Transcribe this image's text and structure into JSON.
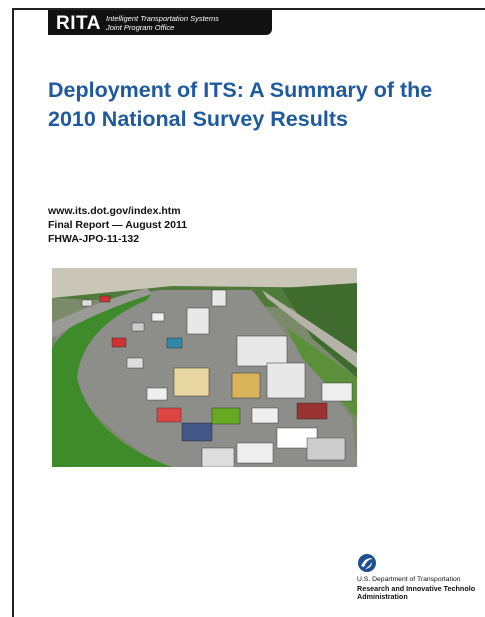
{
  "header": {
    "org": "RITA",
    "program": [
      "Intelligent Transportation Systems",
      "Joint Program Office"
    ]
  },
  "title": [
    "Deployment of ITS: A Summary of the",
    "2010 National Survey Results"
  ],
  "meta": [
    "www.its.dot.gov/index.htm",
    "Final Report — August 2011",
    "FHWA-JPO-11-132"
  ],
  "footer": {
    "department": "U.S. Department of Transportation",
    "administration": [
      "Research and Innovative Technolo",
      "Administration"
    ]
  }
}
